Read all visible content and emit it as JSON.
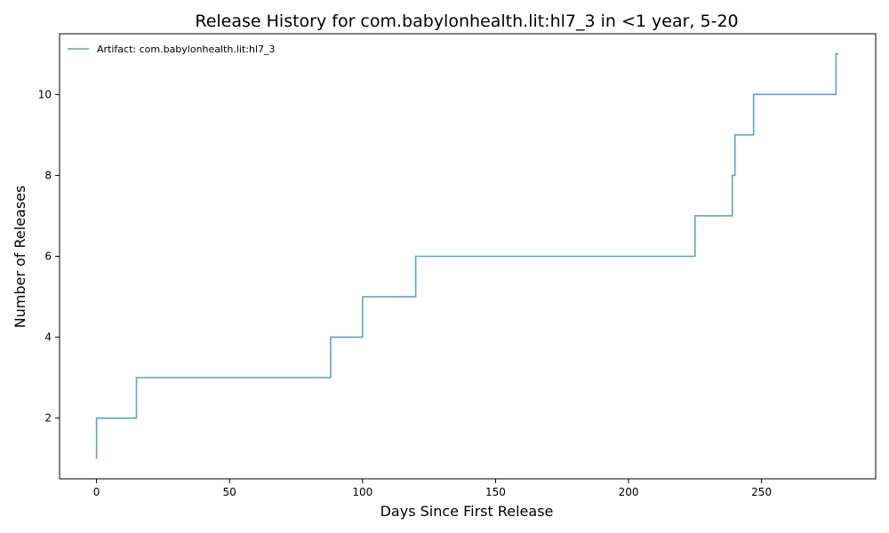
{
  "chart_data": {
    "type": "line",
    "step": "post",
    "title": "Release History for com.babylonhealth.lit:hl7_3 in <1 year, 5-20",
    "xlabel": "Days Since First Release",
    "ylabel": "Number of Releases",
    "xlim": [
      -13.9,
      292.9
    ],
    "ylim": [
      0.5,
      11.5
    ],
    "xticks": [
      0,
      50,
      100,
      150,
      200,
      250
    ],
    "yticks": [
      2,
      4,
      6,
      8,
      10
    ],
    "grid": false,
    "legend_position": "top-left",
    "series": [
      {
        "name": "Artifact: com.babylonhealth.lit:hl7_3",
        "color": "#5ba3cf",
        "x": [
          0,
          0,
          15,
          88,
          100,
          120,
          225,
          239,
          240,
          247,
          278,
          279
        ],
        "y": [
          1,
          2,
          3,
          4,
          5,
          6,
          7,
          8,
          9,
          10,
          11,
          11
        ]
      }
    ]
  }
}
